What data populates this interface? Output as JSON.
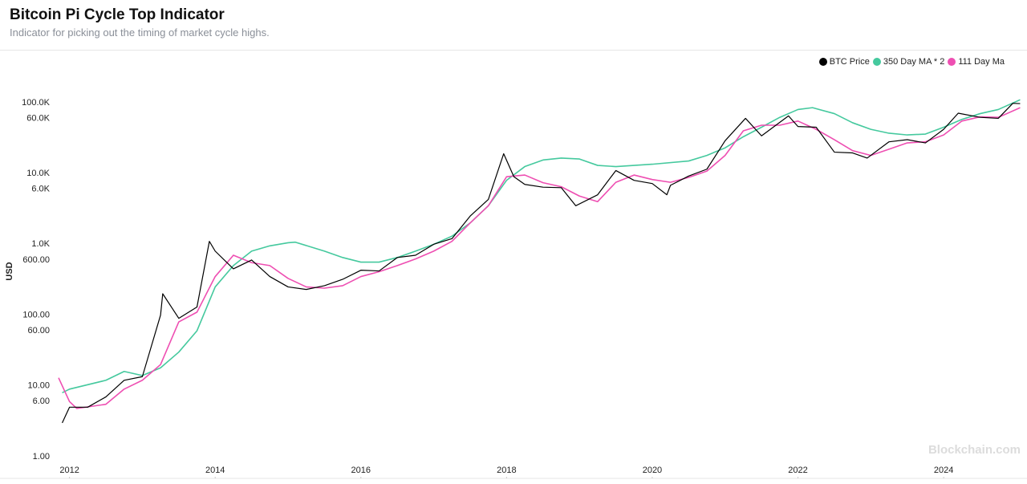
{
  "chart_data": {
    "type": "line",
    "title": "Bitcoin Pi Cycle Top Indicator",
    "subtitle": "Indicator for picking out the timing of market cycle highs.",
    "y_label": "USD",
    "watermark": "Blockchain.com",
    "log_y": true,
    "grid": false,
    "legend": "top-right",
    "xlim": [
      2011.85,
      2025.1
    ],
    "xticks": [
      2012,
      2014,
      2016,
      2018,
      2020,
      2022,
      2024
    ],
    "ylim": [
      0.75,
      140000
    ],
    "yticks": [
      {
        "value": 1,
        "label": "1.00"
      },
      {
        "value": 6,
        "label": "6.00"
      },
      {
        "value": 10,
        "label": "10.00"
      },
      {
        "value": 60,
        "label": "60.00"
      },
      {
        "value": 100,
        "label": "100.00"
      },
      {
        "value": 600,
        "label": "600.00"
      },
      {
        "value": 1000,
        "label": "1.0K"
      },
      {
        "value": 6000,
        "label": "6.0K"
      },
      {
        "value": 10000,
        "label": "10.0K"
      },
      {
        "value": 60000,
        "label": "60.0K"
      },
      {
        "value": 100000,
        "label": "100.0K"
      }
    ],
    "series": [
      {
        "name": "BTC Price",
        "color": "#000000",
        "x": [
          2011.9,
          2012.0,
          2012.25,
          2012.5,
          2012.75,
          2013.0,
          2013.25,
          2013.28,
          2013.5,
          2013.75,
          2013.92,
          2014.0,
          2014.25,
          2014.5,
          2014.75,
          2015.0,
          2015.25,
          2015.5,
          2015.75,
          2016.0,
          2016.25,
          2016.5,
          2016.75,
          2017.0,
          2017.25,
          2017.5,
          2017.75,
          2017.96,
          2018.1,
          2018.25,
          2018.5,
          2018.75,
          2018.95,
          2019.25,
          2019.5,
          2019.75,
          2020.0,
          2020.2,
          2020.25,
          2020.5,
          2020.75,
          2021.0,
          2021.28,
          2021.5,
          2021.87,
          2022.0,
          2022.25,
          2022.5,
          2022.75,
          2022.95,
          2023.25,
          2023.5,
          2023.75,
          2024.0,
          2024.2,
          2024.5,
          2024.75,
          2024.95,
          2025.05
        ],
        "values": [
          3,
          5,
          5,
          7,
          12,
          13.5,
          100,
          200,
          90,
          130,
          1100,
          800,
          450,
          600,
          350,
          250,
          230,
          260,
          320,
          430,
          420,
          650,
          700,
          1000,
          1200,
          2500,
          4300,
          19000,
          9000,
          7000,
          6400,
          6300,
          3500,
          5000,
          11000,
          8000,
          7200,
          5000,
          6800,
          9200,
          11500,
          29000,
          60000,
          34000,
          65000,
          46000,
          45000,
          20000,
          19500,
          16500,
          28000,
          30000,
          27000,
          42000,
          71000,
          62000,
          60000,
          98000,
          97000
        ]
      },
      {
        "name": "350 Day MA * 2",
        "color": "#45c99e",
        "x": [
          2011.9,
          2012.0,
          2012.5,
          2012.75,
          2013.0,
          2013.25,
          2013.5,
          2013.75,
          2014.0,
          2014.25,
          2014.5,
          2014.75,
          2015.0,
          2015.1,
          2015.5,
          2015.75,
          2016.0,
          2016.25,
          2016.5,
          2016.75,
          2017.0,
          2017.25,
          2017.5,
          2017.75,
          2018.0,
          2018.25,
          2018.5,
          2018.75,
          2019.0,
          2019.25,
          2019.5,
          2019.75,
          2020.0,
          2020.5,
          2020.75,
          2021.0,
          2021.25,
          2021.5,
          2021.75,
          2022.0,
          2022.2,
          2022.5,
          2022.75,
          2023.0,
          2023.25,
          2023.5,
          2023.75,
          2024.0,
          2024.25,
          2024.5,
          2024.75,
          2025.05
        ],
        "values": [
          8,
          9,
          12,
          16,
          14,
          18,
          30,
          60,
          250,
          500,
          800,
          950,
          1050,
          1070,
          800,
          650,
          560,
          560,
          650,
          800,
          1000,
          1300,
          2000,
          3500,
          8000,
          12500,
          15500,
          16500,
          16000,
          13000,
          12500,
          13000,
          13500,
          15000,
          18000,
          23000,
          33000,
          45000,
          62000,
          80000,
          85000,
          70000,
          52000,
          42000,
          37000,
          35000,
          36000,
          45000,
          58000,
          70000,
          80000,
          110000
        ]
      },
      {
        "name": "111 Day Ma",
        "color": "#ee4fb2",
        "x": [
          2011.85,
          2012.0,
          2012.1,
          2012.5,
          2012.75,
          2013.0,
          2013.25,
          2013.5,
          2013.75,
          2014.0,
          2014.25,
          2014.5,
          2014.75,
          2015.0,
          2015.25,
          2015.5,
          2015.75,
          2016.0,
          2016.25,
          2016.5,
          2016.75,
          2017.0,
          2017.25,
          2017.5,
          2017.75,
          2018.0,
          2018.25,
          2018.5,
          2018.75,
          2019.0,
          2019.25,
          2019.5,
          2019.75,
          2020.0,
          2020.25,
          2020.5,
          2020.75,
          2021.0,
          2021.25,
          2021.5,
          2021.75,
          2022.0,
          2022.25,
          2022.5,
          2022.75,
          2023.0,
          2023.25,
          2023.5,
          2023.75,
          2024.0,
          2024.25,
          2024.5,
          2024.75,
          2025.05
        ],
        "values": [
          13,
          6,
          4.8,
          5.5,
          9,
          12,
          20,
          80,
          110,
          350,
          700,
          550,
          500,
          330,
          250,
          240,
          260,
          350,
          410,
          500,
          620,
          800,
          1100,
          2000,
          3500,
          9000,
          9500,
          7400,
          6500,
          4800,
          4000,
          7500,
          9500,
          8200,
          7500,
          8800,
          10800,
          18000,
          40000,
          48000,
          48000,
          55000,
          42000,
          30000,
          21000,
          18000,
          22000,
          27000,
          28000,
          35000,
          55000,
          63000,
          62000,
          85000
        ]
      }
    ]
  }
}
